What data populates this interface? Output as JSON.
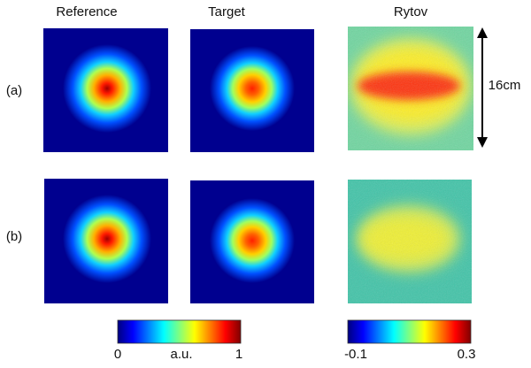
{
  "columns": [
    "Reference",
    "Target",
    "Rytov"
  ],
  "rows": [
    "(a)",
    "(b)"
  ],
  "scale_label": "16cm",
  "colorbars": [
    {
      "labels": [
        "0",
        "a.u.",
        "1"
      ]
    },
    {
      "labels": [
        "-0.1",
        "0.3"
      ]
    }
  ]
}
